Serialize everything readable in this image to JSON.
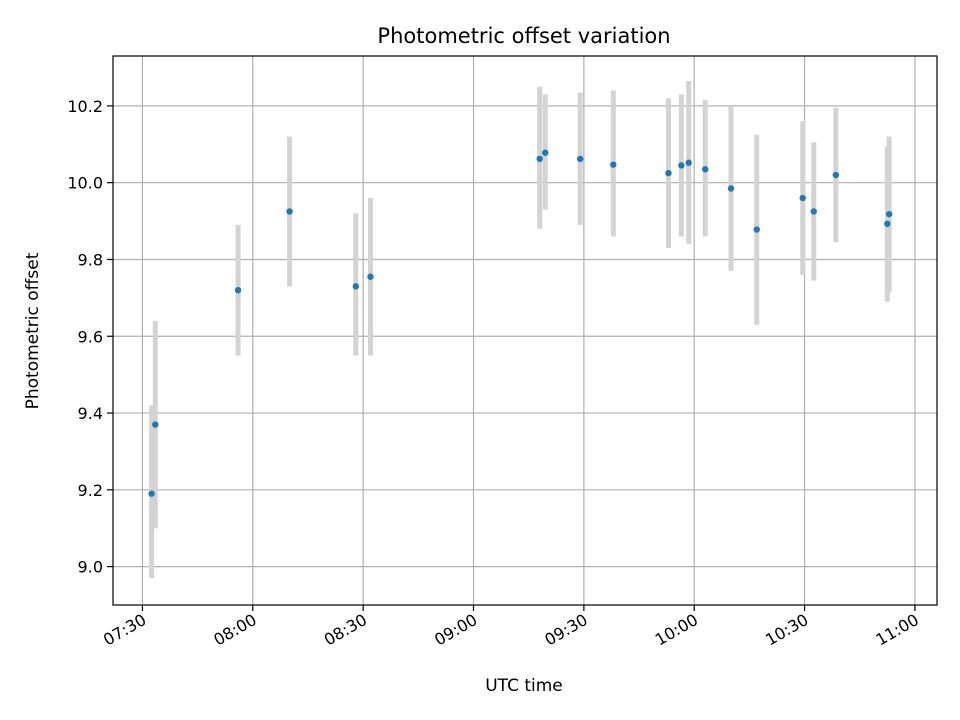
{
  "chart_data": {
    "type": "scatter",
    "title": "Photometric offset variation",
    "xlabel": "UTC time",
    "ylabel": "Photometric offset",
    "xlim": [
      "07:22",
      "11:06"
    ],
    "ylim": [
      8.9,
      10.33
    ],
    "x_ticks": [
      "07:30",
      "08:00",
      "08:30",
      "09:00",
      "09:30",
      "10:00",
      "10:30",
      "11:00"
    ],
    "y_ticks": [
      9.0,
      9.2,
      9.4,
      9.6,
      9.8,
      10.0,
      10.2
    ],
    "grid": true,
    "marker_color": "#1f77b4",
    "errorbar_color": "#d3d3d3",
    "points": [
      {
        "x": "07:32:30",
        "y": 9.19,
        "ymin": 8.97,
        "ymax": 9.42
      },
      {
        "x": "07:33:30",
        "y": 9.37,
        "ymin": 9.1,
        "ymax": 9.64
      },
      {
        "x": "07:56:00",
        "y": 9.72,
        "ymin": 9.55,
        "ymax": 9.89
      },
      {
        "x": "08:10:00",
        "y": 9.925,
        "ymin": 9.73,
        "ymax": 10.12
      },
      {
        "x": "08:28:00",
        "y": 9.73,
        "ymin": 9.55,
        "ymax": 9.92
      },
      {
        "x": "08:32:00",
        "y": 9.755,
        "ymin": 9.55,
        "ymax": 9.96
      },
      {
        "x": "09:18:00",
        "y": 10.062,
        "ymin": 9.88,
        "ymax": 10.25
      },
      {
        "x": "09:19:30",
        "y": 10.078,
        "ymin": 9.93,
        "ymax": 10.23
      },
      {
        "x": "09:29:00",
        "y": 10.062,
        "ymin": 9.89,
        "ymax": 10.235
      },
      {
        "x": "09:38:00",
        "y": 10.047,
        "ymin": 9.86,
        "ymax": 10.24
      },
      {
        "x": "09:53:00",
        "y": 10.025,
        "ymin": 9.83,
        "ymax": 10.22
      },
      {
        "x": "09:56:30",
        "y": 10.045,
        "ymin": 9.86,
        "ymax": 10.23
      },
      {
        "x": "09:58:30",
        "y": 10.052,
        "ymin": 9.84,
        "ymax": 10.265
      },
      {
        "x": "10:03:00",
        "y": 10.035,
        "ymin": 9.86,
        "ymax": 10.215
      },
      {
        "x": "10:10:00",
        "y": 9.985,
        "ymin": 9.77,
        "ymax": 10.2
      },
      {
        "x": "10:17:00",
        "y": 9.878,
        "ymin": 9.63,
        "ymax": 10.125
      },
      {
        "x": "10:29:30",
        "y": 9.96,
        "ymin": 9.76,
        "ymax": 10.16
      },
      {
        "x": "10:32:30",
        "y": 9.925,
        "ymin": 9.745,
        "ymax": 10.105
      },
      {
        "x": "10:38:30",
        "y": 10.02,
        "ymin": 9.845,
        "ymax": 10.195
      },
      {
        "x": "10:52:30",
        "y": 9.893,
        "ymin": 9.69,
        "ymax": 10.095
      },
      {
        "x": "10:53:00",
        "y": 9.918,
        "ymin": 9.715,
        "ymax": 10.12
      }
    ]
  }
}
